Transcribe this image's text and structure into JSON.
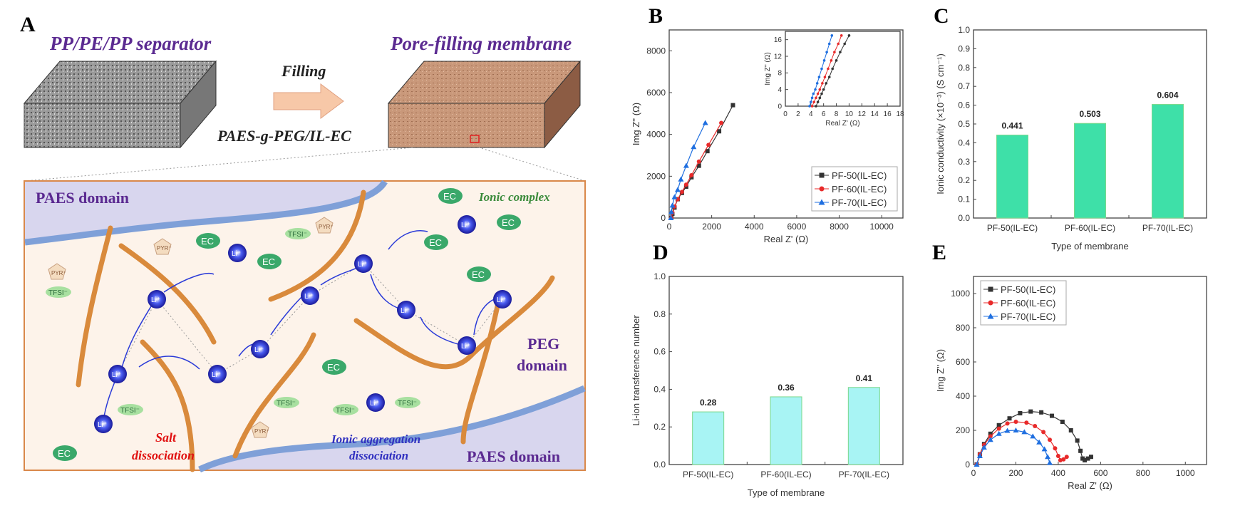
{
  "panel_labels": {
    "a": "A",
    "b": "B",
    "c": "C",
    "d": "D",
    "e": "E"
  },
  "schematic": {
    "left_title": "PP/PE/PP separator",
    "right_title": "Pore-filling membrane",
    "arrow_top": "Filling",
    "arrow_bottom": "PAES-g-PEG/IL-EC",
    "paes_domain_top": "PAES domain",
    "paes_domain_bottom": "PAES domain",
    "peg_domain_1": "PEG",
    "peg_domain_2": "domain",
    "ionic_complex": "Ionic complex",
    "salt_1": "Salt",
    "salt_2": "dissociation",
    "agg_1": "Ionic aggregation",
    "agg_2": "dissociation",
    "li": "Li⁺",
    "ec": "EC",
    "tfsi": "TFSI⁻",
    "pyr": "PYR⁺",
    "colors": {
      "title": "#5b2a91",
      "chain": "#d98a3c",
      "li": "#2a3ad8",
      "ec": "#3aa86a",
      "salt": "#e01010",
      "agg": "#3030c0",
      "paes_bg": "#d8d6ee",
      "inner_bg": "#fdf3ea"
    }
  },
  "chart_data": [
    {
      "id": "B",
      "type": "scatter",
      "xlabel": "Real Z' (Ω)",
      "ylabel": "Img Z'' (Ω)",
      "xlim": [
        0,
        11000
      ],
      "ylim": [
        0,
        9000
      ],
      "xticks": [
        0,
        2000,
        4000,
        6000,
        8000,
        10000
      ],
      "yticks": [
        0,
        2000,
        4000,
        6000,
        8000
      ],
      "legend": "bottom-right",
      "series": [
        {
          "name": "PF-50(IL-EC)",
          "color": "#333333",
          "marker": "square",
          "points": [
            [
              100,
              0
            ],
            [
              150,
              200
            ],
            [
              250,
              500
            ],
            [
              400,
              900
            ],
            [
              600,
              1200
            ],
            [
              800,
              1500
            ],
            [
              1050,
              1950
            ],
            [
              1400,
              2500
            ],
            [
              1800,
              3200
            ],
            [
              2350,
              4150
            ],
            [
              3000,
              5400
            ]
          ]
        },
        {
          "name": "PF-60(IL-EC)",
          "color": "#e82a2a",
          "marker": "circle",
          "points": [
            [
              100,
              0
            ],
            [
              150,
              250
            ],
            [
              250,
              550
            ],
            [
              400,
              900
            ],
            [
              600,
              1250
            ],
            [
              800,
              1600
            ],
            [
              1050,
              2050
            ],
            [
              1400,
              2700
            ],
            [
              1850,
              3500
            ],
            [
              2450,
              4550
            ]
          ]
        },
        {
          "name": "PF-70(IL-EC)",
          "color": "#1f6fe0",
          "marker": "triangle",
          "points": [
            [
              80,
              0
            ],
            [
              100,
              300
            ],
            [
              150,
              600
            ],
            [
              250,
              1000
            ],
            [
              400,
              1350
            ],
            [
              550,
              1850
            ],
            [
              800,
              2500
            ],
            [
              1150,
              3400
            ],
            [
              1700,
              4550
            ]
          ]
        }
      ],
      "inset": {
        "xlabel": "Real Z' (Ω)",
        "ylabel": "Img Z'' (Ω)",
        "xlim": [
          0,
          18
        ],
        "ylim": [
          0,
          18
        ],
        "xticks": [
          0,
          2,
          4,
          6,
          8,
          10,
          12,
          14,
          16,
          18
        ],
        "yticks": [
          0,
          4,
          8,
          12,
          16
        ],
        "series": [
          {
            "name": "PF-50(IL-EC)",
            "color": "#333333",
            "points": [
              [
                4.8,
                0
              ],
              [
                5.1,
                1
              ],
              [
                5.4,
                2
              ],
              [
                5.7,
                3
              ],
              [
                6,
                4
              ],
              [
                6.4,
                5.5
              ],
              [
                6.9,
                7
              ],
              [
                7.4,
                9
              ],
              [
                8,
                11
              ],
              [
                8.6,
                13
              ],
              [
                9.3,
                15
              ],
              [
                10,
                17
              ]
            ]
          },
          {
            "name": "PF-60(IL-EC)",
            "color": "#e82a2a",
            "points": [
              [
                4.2,
                0
              ],
              [
                4.5,
                1
              ],
              [
                4.8,
                2
              ],
              [
                5.1,
                3
              ],
              [
                5.4,
                4
              ],
              [
                5.8,
                5.5
              ],
              [
                6.2,
                7
              ],
              [
                6.7,
                9
              ],
              [
                7.2,
                11
              ],
              [
                7.7,
                13
              ],
              [
                8.3,
                15
              ],
              [
                8.8,
                17
              ]
            ]
          },
          {
            "name": "PF-70(IL-EC)",
            "color": "#1f6fe0",
            "points": [
              [
                3.8,
                0
              ],
              [
                4,
                1
              ],
              [
                4.2,
                2
              ],
              [
                4.4,
                3
              ],
              [
                4.7,
                4
              ],
              [
                5,
                5.5
              ],
              [
                5.3,
                7
              ],
              [
                5.7,
                9
              ],
              [
                6.1,
                11
              ],
              [
                6.5,
                13
              ],
              [
                6.9,
                15
              ],
              [
                7.3,
                17
              ]
            ]
          }
        ]
      }
    },
    {
      "id": "C",
      "type": "bar",
      "xlabel": "Type of membrane",
      "ylabel": "Ionic conductivity (×10⁻³) (S cm⁻¹)",
      "ylim": [
        0,
        1.0
      ],
      "yticks": [
        0.0,
        0.1,
        0.2,
        0.3,
        0.4,
        0.5,
        0.6,
        0.7,
        0.8,
        0.9,
        1.0
      ],
      "categories": [
        "PF-50(IL-EC)",
        "PF-60(IL-EC)",
        "PF-70(IL-EC)"
      ],
      "values": [
        0.441,
        0.503,
        0.604
      ],
      "labels": [
        "0.441",
        "0.503",
        "0.604"
      ],
      "color": "#3ee0a8"
    },
    {
      "id": "D",
      "type": "bar",
      "xlabel": "Type of membrane",
      "ylabel": "Li-ion transference number",
      "ylim": [
        0,
        1.0
      ],
      "yticks": [
        0.0,
        0.2,
        0.4,
        0.6,
        0.8,
        1.0
      ],
      "categories": [
        "PF-50(IL-EC)",
        "PF-60(IL-EC)",
        "PF-70(IL-EC)"
      ],
      "values": [
        0.28,
        0.36,
        0.41
      ],
      "labels": [
        "0.28",
        "0.36",
        "0.41"
      ],
      "color": "#a8f4f4"
    },
    {
      "id": "E",
      "type": "scatter",
      "xlabel": "Real Z' (Ω)",
      "ylabel": "Img Z'' (Ω)",
      "xlim": [
        0,
        1100
      ],
      "ylim": [
        0,
        1100
      ],
      "xticks": [
        0,
        200,
        400,
        600,
        800,
        1000
      ],
      "yticks": [
        0,
        200,
        400,
        600,
        800,
        1000
      ],
      "legend": "top-left",
      "series": [
        {
          "name": "PF-50(IL-EC)",
          "color": "#333333",
          "marker": "square",
          "points": [
            [
              15,
              0
            ],
            [
              30,
              60
            ],
            [
              50,
              120
            ],
            [
              80,
              180
            ],
            [
              120,
              230
            ],
            [
              170,
              270
            ],
            [
              220,
              300
            ],
            [
              270,
              310
            ],
            [
              320,
              305
            ],
            [
              370,
              285
            ],
            [
              420,
              250
            ],
            [
              460,
              200
            ],
            [
              490,
              140
            ],
            [
              505,
              80
            ],
            [
              515,
              35
            ],
            [
              525,
              25
            ],
            [
              540,
              35
            ],
            [
              555,
              45
            ]
          ]
        },
        {
          "name": "PF-60(IL-EC)",
          "color": "#e82a2a",
          "marker": "circle",
          "points": [
            [
              15,
              0
            ],
            [
              30,
              60
            ],
            [
              50,
              115
            ],
            [
              80,
              165
            ],
            [
              120,
              210
            ],
            [
              160,
              240
            ],
            [
              200,
              250
            ],
            [
              250,
              245
            ],
            [
              290,
              225
            ],
            [
              330,
              190
            ],
            [
              360,
              145
            ],
            [
              385,
              95
            ],
            [
              400,
              50
            ],
            [
              410,
              25
            ],
            [
              425,
              30
            ],
            [
              440,
              45
            ]
          ]
        },
        {
          "name": "PF-70(IL-EC)",
          "color": "#1f6fe0",
          "marker": "triangle",
          "points": [
            [
              15,
              0
            ],
            [
              30,
              50
            ],
            [
              50,
              100
            ],
            [
              80,
              145
            ],
            [
              120,
              180
            ],
            [
              160,
              198
            ],
            [
              200,
              200
            ],
            [
              240,
              190
            ],
            [
              280,
              165
            ],
            [
              310,
              130
            ],
            [
              335,
              90
            ],
            [
              350,
              45
            ],
            [
              360,
              10
            ]
          ]
        }
      ]
    }
  ]
}
